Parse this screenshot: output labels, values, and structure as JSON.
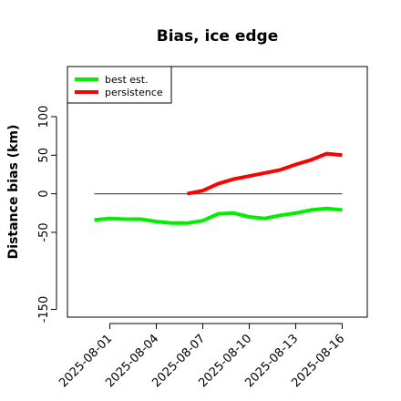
{
  "chart_data": {
    "type": "line",
    "title": "Bias, ice edge",
    "xlabel": "",
    "ylabel": "Distance bias (km)",
    "x": [
      "2025-07-31",
      "2025-08-01",
      "2025-08-02",
      "2025-08-03",
      "2025-08-04",
      "2025-08-05",
      "2025-08-06",
      "2025-08-07",
      "2025-08-08",
      "2025-08-09",
      "2025-08-10",
      "2025-08-11",
      "2025-08-12",
      "2025-08-13",
      "2025-08-14",
      "2025-08-15",
      "2025-08-16"
    ],
    "x_ticks": [
      "2025-08-01",
      "2025-08-04",
      "2025-08-07",
      "2025-08-10",
      "2025-08-13",
      "2025-08-16"
    ],
    "ylim": [
      -160,
      165
    ],
    "y_ticks": [
      -150,
      -50,
      0,
      50,
      100
    ],
    "reference_line": {
      "y": 0,
      "x_start": "2025-07-31",
      "x_end": "2025-08-16",
      "color": "#555555"
    },
    "series": [
      {
        "name": "best est.",
        "color": "#00ee00",
        "x": [
          "2025-07-31",
          "2025-08-01",
          "2025-08-02",
          "2025-08-03",
          "2025-08-04",
          "2025-08-05",
          "2025-08-06",
          "2025-08-07",
          "2025-08-08",
          "2025-08-09",
          "2025-08-10",
          "2025-08-11",
          "2025-08-12",
          "2025-08-13",
          "2025-08-14",
          "2025-08-15",
          "2025-08-16"
        ],
        "values": [
          -34,
          -32,
          -33,
          -33,
          -36,
          -38,
          -38,
          -35,
          -26,
          -25,
          -30,
          -32,
          -28,
          -25,
          -21,
          -19,
          -21
        ]
      },
      {
        "name": "persistence",
        "color": "#ff0000",
        "x": [
          "2025-08-06",
          "2025-08-07",
          "2025-08-08",
          "2025-08-09",
          "2025-08-10",
          "2025-08-11",
          "2025-08-12",
          "2025-08-13",
          "2025-08-14",
          "2025-08-15",
          "2025-08-16"
        ],
        "values": [
          0,
          4,
          13,
          19,
          23,
          27,
          31,
          38,
          44,
          52,
          50
        ]
      }
    ],
    "grid": false,
    "legend_position": "top-left"
  }
}
